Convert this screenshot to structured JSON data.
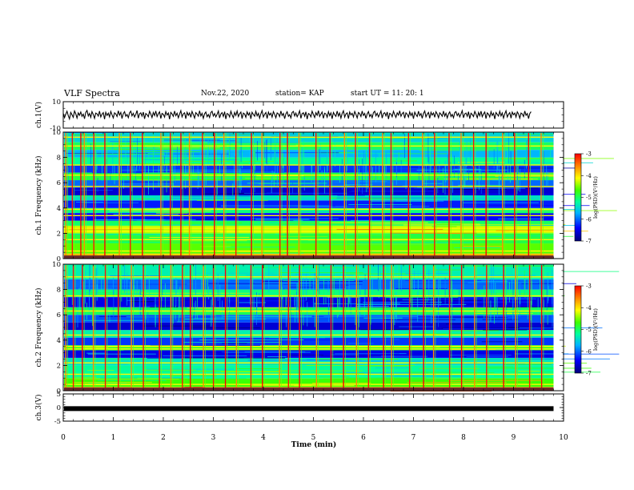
{
  "header": {
    "title": "VLF Spectra",
    "date": "Nov.22, 2020",
    "station": "station= KAP",
    "start": "start  UT =   11: 20: 1"
  },
  "chart_data": [
    {
      "type": "line",
      "name": "ch1_waveform",
      "ylabel": "ch.1(V)",
      "ylim": [
        -10,
        10
      ],
      "yticks": [
        "10",
        "-10"
      ],
      "xlim": [
        0,
        9.8
      ],
      "samples_per_minute": 40,
      "line_color": "#000000",
      "values": [
        1.2,
        -2.1,
        0.4,
        2.8,
        -0.6,
        -3.1,
        1.9,
        0.2,
        -1.8,
        3.0,
        0.9,
        -2.4,
        1.5,
        -0.3,
        2.2,
        -1.1,
        0.6,
        -2.9,
        1.8,
        3.4,
        -0.8,
        1.1,
        -1.9,
        2.5,
        0.3,
        -2.6,
        1.4,
        0.8,
        -0.9,
        2.9,
        -1.6,
        0.5,
        1.7,
        -3.2,
        2.0,
        -0.4,
        1.3,
        -1.5,
        2.6,
        0.1,
        -2.3,
        1.6,
        0.7,
        -1.2,
        3.1,
        -0.2,
        1.9,
        -2.8,
        0.9,
        2.4,
        -1.0,
        0.3,
        -2.1,
        1.5,
        2.8,
        -0.7,
        1.2,
        -1.6,
        0.4,
        3.3,
        -2.5,
        0.8,
        1.6,
        -0.9,
        2.1,
        -3.0,
        1.0,
        0.2,
        -1.4,
        2.7,
        0.6,
        -2.0,
        1.8,
        -0.5,
        3.0,
        -1.3,
        0.9,
        2.3,
        -2.7,
        1.1,
        0.4,
        -1.7,
        2.5,
        -0.1,
        1.4,
        -3.3,
        1.9,
        0.7,
        -1.1,
        2.9,
        -0.6,
        1.3,
        -2.2,
        0.5,
        3.2,
        -1.5,
        0.8,
        1.6,
        -2.9,
        2.0,
        -0.3,
        1.5,
        -1.8,
        2.6,
        0.2,
        -2.4,
        1.7,
        0.6,
        -1.0,
        3.1,
        -0.8,
        1.2,
        -2.6,
        0.9,
        2.2,
        -1.4,
        0.3,
        -2.0,
        1.8,
        2.7,
        -0.9,
        1.0,
        -1.5,
        0.4,
        3.0,
        -2.3,
        0.7,
        1.7,
        -1.2,
        2.4,
        -3.1,
        1.1,
        0.5,
        -1.6,
        2.8,
        0.1,
        -2.1,
        1.9,
        -0.4,
        2.9,
        -1.3,
        0.8,
        2.1,
        -2.8,
        1.4,
        0.6,
        -1.9,
        2.3,
        -0.2,
        1.6,
        -3.0,
        2.0,
        0.3,
        -1.0,
        2.7,
        -0.7,
        1.2,
        -2.5,
        0.9,
        3.3,
        -1.6,
        0.5,
        1.8,
        -2.7,
        2.1,
        -0.1,
        1.3,
        -1.7,
        2.5,
        0.4,
        -2.2,
        1.5,
        0.8,
        -1.3,
        3.0,
        -0.5,
        1.1,
        -2.9,
        0.7,
        2.4,
        -1.1,
        0.2,
        -2.3,
        1.9,
        2.6,
        -0.8,
        1.4,
        -1.4,
        0.6,
        3.1,
        -2.6,
        0.9,
        1.6,
        -1.0,
        2.3,
        -3.2,
        1.0,
        0.4,
        -1.5,
        2.8,
        0.3,
        -2.0,
        1.7,
        -0.3,
        3.2,
        -1.2,
        0.6,
        2.2,
        -2.6,
        1.3,
        0.8,
        -1.8,
        2.4,
        -0.6,
        1.5,
        -3.0,
        1.9,
        0.1,
        -1.1,
        2.9,
        -0.9,
        1.4,
        -2.4,
        1.0,
        3.1,
        -1.7,
        0.7,
        1.5,
        -2.8,
        2.2,
        0.0,
        1.2,
        -1.6,
        2.6,
        0.5,
        -2.3,
        1.8,
        0.9,
        -1.2,
        2.9,
        -0.4,
        1.1,
        -2.7,
        0.8,
        2.5,
        -1.3,
        0.3,
        -2.1,
        1.7,
        2.8,
        -0.7,
        1.3,
        -1.5,
        0.5,
        3.0,
        -2.4,
        1.0,
        1.7,
        -0.8,
        2.2,
        -3.1,
        1.2,
        0.6,
        -1.4,
        2.7,
        0.2,
        -1.9,
        1.6,
        -0.2,
        3.1,
        -1.0,
        0.9,
        2.0,
        -2.5,
        1.6,
        0.4,
        -1.7,
        2.3,
        -0.5,
        1.4,
        -2.9,
        2.1,
        0.2,
        -1.2,
        2.8,
        -0.6,
        1.0,
        -2.6,
        1.1,
        3.0,
        -1.5,
        0.6,
        1.9,
        -2.6,
        2.0,
        -0.2,
        1.5,
        -1.8,
        2.4,
        0.7,
        -2.1,
        1.6,
        0.5,
        -1.0,
        2.9,
        -0.9,
        1.3,
        -2.3,
        0.8,
        2.3,
        -1.2,
        0.4,
        -2.2,
        1.8,
        2.5,
        -0.6,
        1.2,
        -1.6,
        0.7,
        3.2,
        -2.2,
        0.8,
        1.4,
        -1.1,
        2.4,
        -2.9,
        1.3,
        0.3,
        -1.3,
        2.6,
        0.6,
        -2.2,
        1.9,
        -0.7,
        2.8,
        -1.4,
        0.7,
        2.2,
        -2.8,
        1.5,
        0.5,
        -1.6,
        2.5,
        -0.4,
        1.3,
        -3.1,
        1.8,
        0.4,
        -0.9,
        2.7,
        -0.8,
        1.5,
        -2.4,
        0.9,
        3.1,
        -1.6,
        0.5,
        1.7,
        -2.5,
        2.1,
        0.1,
        1.4,
        -1.7,
        2.3,
        0.6,
        -2.5,
        1.4,
        0.7,
        -1.3,
        3.0,
        -0.3,
        1.0,
        -2.8,
        1.0,
        2.4
      ]
    },
    {
      "type": "heatmap",
      "name": "ch1_spectrogram",
      "ylabel": "ch.1 Frequency (kHz)",
      "ylim": [
        0,
        10
      ],
      "yticks": [
        "0",
        "2",
        "4",
        "6",
        "8",
        "10"
      ],
      "xlim": [
        0,
        9.8
      ],
      "colorbar": {
        "label": "log(PSD)(V²/Hz)",
        "range": [
          -7,
          -3
        ],
        "ticks": [
          "-3",
          "-4",
          "-5",
          "-6",
          "-7"
        ]
      },
      "bands_khz": [
        {
          "from": 0.0,
          "to": 0.4,
          "level": -3.8
        },
        {
          "from": 0.4,
          "to": 1.2,
          "level": -4.6
        },
        {
          "from": 1.2,
          "to": 2.0,
          "level": -4.9
        },
        {
          "from": 2.0,
          "to": 2.6,
          "level": -4.3
        },
        {
          "from": 2.6,
          "to": 3.0,
          "level": -5.0
        },
        {
          "from": 3.0,
          "to": 3.6,
          "level": -6.4
        },
        {
          "from": 3.6,
          "to": 4.0,
          "level": -5.1
        },
        {
          "from": 4.0,
          "to": 4.6,
          "level": -6.3
        },
        {
          "from": 4.6,
          "to": 5.0,
          "level": -5.4
        },
        {
          "from": 5.0,
          "to": 5.6,
          "level": -6.6
        },
        {
          "from": 5.6,
          "to": 6.2,
          "level": -6.0
        },
        {
          "from": 6.2,
          "to": 6.8,
          "level": -4.9
        },
        {
          "from": 6.8,
          "to": 7.4,
          "level": -6.2
        },
        {
          "from": 7.4,
          "to": 8.0,
          "level": -5.2
        },
        {
          "from": 8.0,
          "to": 8.6,
          "level": -5.7
        },
        {
          "from": 8.6,
          "to": 9.2,
          "level": -5.0
        },
        {
          "from": 9.2,
          "to": 10.0,
          "level": -5.5
        }
      ],
      "tone_lines_khz": [
        0.2,
        0.6,
        1.5,
        2.15,
        2.4,
        3.4,
        3.9,
        5.7,
        6.6,
        7.4,
        8.9,
        9.6
      ],
      "spherics_min": [
        0.05,
        0.18,
        0.35,
        0.42,
        0.61,
        0.83,
        1.12,
        1.34,
        1.58,
        1.95,
        2.14,
        2.35,
        2.52,
        2.78,
        3.02,
        3.21,
        3.45,
        3.76,
        3.97,
        4.33,
        4.48,
        4.71,
        5.05,
        5.33,
        5.62,
        5.84,
        6.12,
        6.38,
        6.55,
        6.9,
        7.18,
        7.42,
        7.71,
        7.95,
        8.2,
        8.45,
        8.78,
        9.02,
        9.3,
        9.55
      ]
    },
    {
      "type": "heatmap",
      "name": "ch2_spectrogram",
      "ylabel": "ch.2 Frequency (kHz)",
      "ylim": [
        0,
        10
      ],
      "yticks": [
        "0",
        "2",
        "4",
        "6",
        "8",
        "10"
      ],
      "xlim": [
        0,
        9.8
      ],
      "colorbar": {
        "label": "log(PSD)(V²/Hz)",
        "range": [
          -7,
          -3
        ],
        "ticks": [
          "-3",
          "-4",
          "-5",
          "-6",
          "-7"
        ]
      },
      "bands_khz": [
        {
          "from": 0.0,
          "to": 0.3,
          "level": -3.6
        },
        {
          "from": 0.3,
          "to": 1.0,
          "level": -4.7
        },
        {
          "from": 1.0,
          "to": 2.0,
          "level": -5.2
        },
        {
          "from": 2.0,
          "to": 2.6,
          "level": -5.4
        },
        {
          "from": 2.6,
          "to": 3.2,
          "level": -6.5
        },
        {
          "from": 3.2,
          "to": 3.6,
          "level": -4.8
        },
        {
          "from": 3.6,
          "to": 4.2,
          "level": -6.2
        },
        {
          "from": 4.2,
          "to": 4.8,
          "level": -5.3
        },
        {
          "from": 4.8,
          "to": 5.4,
          "level": -6.6
        },
        {
          "from": 5.4,
          "to": 6.0,
          "level": -6.1
        },
        {
          "from": 6.0,
          "to": 6.6,
          "level": -5.0
        },
        {
          "from": 6.6,
          "to": 7.4,
          "level": -6.5
        },
        {
          "from": 7.4,
          "to": 8.0,
          "level": -5.1
        },
        {
          "from": 8.0,
          "to": 8.8,
          "level": -6.0
        },
        {
          "from": 8.8,
          "to": 10.0,
          "level": -5.3
        }
      ],
      "tone_lines_khz": [
        0.15,
        0.5,
        1.3,
        2.2,
        3.3,
        3.5,
        4.4,
        6.3,
        7.5,
        9.0
      ],
      "spherics_min": [
        0.05,
        0.2,
        0.38,
        0.6,
        0.84,
        1.1,
        1.36,
        1.6,
        1.92,
        2.15,
        2.38,
        2.54,
        2.8,
        3.0,
        3.24,
        3.46,
        3.75,
        3.98,
        4.32,
        4.5,
        4.72,
        5.06,
        5.35,
        5.6,
        5.86,
        6.1,
        6.4,
        6.56,
        6.92,
        7.2,
        7.4,
        7.72,
        7.96,
        8.22,
        8.46,
        8.8,
        9.04,
        9.32,
        9.56
      ]
    },
    {
      "type": "line",
      "name": "ch3_waveform",
      "ylabel": "ch.3(V)",
      "ylim": [
        -5,
        5
      ],
      "yticks": [
        "5",
        "0",
        "-5"
      ],
      "xlim": [
        0,
        9.8
      ],
      "level": -0.4,
      "line_color": "#000000"
    }
  ],
  "x_axis": {
    "label": "Time  (min)",
    "ticks": [
      "0",
      "1",
      "2",
      "3",
      "4",
      "5",
      "6",
      "7",
      "8",
      "9",
      "10"
    ],
    "xlim": [
      0,
      10
    ]
  }
}
